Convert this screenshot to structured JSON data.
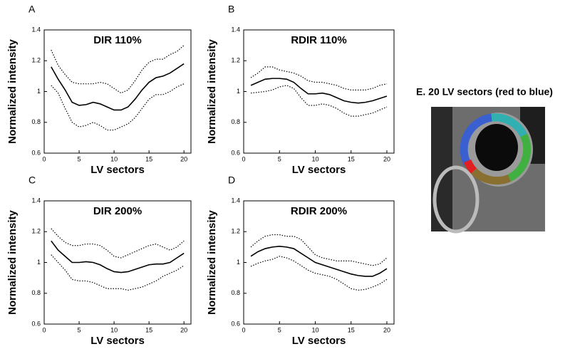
{
  "chart_data": [
    {
      "type": "line",
      "panel": "A",
      "title": "DIR 110%",
      "xlabel": "LV sectors",
      "ylabel": "Normalized intensity",
      "x": [
        1,
        2,
        3,
        4,
        5,
        6,
        7,
        8,
        9,
        10,
        11,
        12,
        13,
        14,
        15,
        16,
        17,
        18,
        19,
        20
      ],
      "xlim": [
        0,
        21
      ],
      "xticks": [
        0,
        5,
        10,
        15,
        20
      ],
      "ylim": [
        0.6,
        1.4
      ],
      "yticks": [
        0.6,
        0.8,
        1,
        1.2,
        1.4
      ],
      "series": [
        {
          "color": "#000000",
          "style": "solid",
          "values": [
            1.16,
            1.08,
            1.01,
            0.93,
            0.91,
            0.915,
            0.93,
            0.92,
            0.9,
            0.88,
            0.88,
            0.9,
            0.95,
            1.01,
            1.06,
            1.09,
            1.1,
            1.12,
            1.15,
            1.18
          ]
        },
        {
          "color": "#000000",
          "style": "dotted",
          "values": [
            1.27,
            1.17,
            1.11,
            1.06,
            1.05,
            1.05,
            1.05,
            1.06,
            1.05,
            1.02,
            0.99,
            1.01,
            1.07,
            1.14,
            1.19,
            1.21,
            1.21,
            1.24,
            1.26,
            1.3
          ]
        },
        {
          "color": "#000000",
          "style": "dotted",
          "values": [
            1.04,
            0.99,
            0.89,
            0.8,
            0.77,
            0.78,
            0.8,
            0.78,
            0.75,
            0.75,
            0.77,
            0.79,
            0.83,
            0.89,
            0.95,
            0.98,
            0.98,
            1.0,
            1.03,
            1.05
          ]
        }
      ]
    },
    {
      "type": "line",
      "panel": "B",
      "title": "RDIR 110%",
      "xlabel": "LV sectors",
      "ylabel": "Normalized intensity",
      "x": [
        1,
        2,
        3,
        4,
        5,
        6,
        7,
        8,
        9,
        10,
        11,
        12,
        13,
        14,
        15,
        16,
        17,
        18,
        19,
        20
      ],
      "xlim": [
        0,
        21
      ],
      "xticks": [
        0,
        5,
        10,
        15,
        20
      ],
      "ylim": [
        0.6,
        1.4
      ],
      "yticks": [
        0.6,
        0.8,
        1,
        1.2,
        1.4
      ],
      "series": [
        {
          "color": "#000000",
          "style": "solid",
          "values": [
            1.04,
            1.06,
            1.08,
            1.085,
            1.085,
            1.08,
            1.06,
            1.02,
            0.985,
            0.985,
            0.99,
            0.98,
            0.96,
            0.94,
            0.93,
            0.925,
            0.93,
            0.94,
            0.955,
            0.97
          ]
        },
        {
          "color": "#000000",
          "style": "dotted",
          "values": [
            1.09,
            1.12,
            1.16,
            1.16,
            1.14,
            1.13,
            1.12,
            1.1,
            1.07,
            1.06,
            1.06,
            1.05,
            1.04,
            1.02,
            1.01,
            1.01,
            1.01,
            1.02,
            1.04,
            1.05
          ]
        },
        {
          "color": "#000000",
          "style": "dotted",
          "values": [
            0.99,
            0.995,
            1.0,
            1.01,
            1.03,
            1.04,
            1.02,
            0.96,
            0.91,
            0.91,
            0.92,
            0.91,
            0.89,
            0.86,
            0.84,
            0.84,
            0.85,
            0.86,
            0.88,
            0.9
          ]
        }
      ]
    },
    {
      "type": "line",
      "panel": "C",
      "title": "DIR 200%",
      "xlabel": "LV sectors",
      "ylabel": "Normalized intensity",
      "x": [
        1,
        2,
        3,
        4,
        5,
        6,
        7,
        8,
        9,
        10,
        11,
        12,
        13,
        14,
        15,
        16,
        17,
        18,
        19,
        20
      ],
      "xlim": [
        0,
        21
      ],
      "xticks": [
        0,
        5,
        10,
        15,
        20
      ],
      "ylim": [
        0.6,
        1.4
      ],
      "yticks": [
        0.6,
        0.8,
        1,
        1.2,
        1.4
      ],
      "series": [
        {
          "color": "#000000",
          "style": "solid",
          "values": [
            1.14,
            1.08,
            1.04,
            1.0,
            1.0,
            1.005,
            1.0,
            0.985,
            0.96,
            0.94,
            0.935,
            0.94,
            0.955,
            0.97,
            0.985,
            0.99,
            0.99,
            1.0,
            1.03,
            1.06
          ]
        },
        {
          "color": "#000000",
          "style": "dotted",
          "values": [
            1.22,
            1.17,
            1.13,
            1.11,
            1.11,
            1.12,
            1.12,
            1.11,
            1.08,
            1.04,
            1.03,
            1.05,
            1.07,
            1.09,
            1.11,
            1.12,
            1.1,
            1.08,
            1.1,
            1.14
          ]
        },
        {
          "color": "#000000",
          "style": "dotted",
          "values": [
            1.05,
            1.0,
            0.95,
            0.89,
            0.88,
            0.88,
            0.87,
            0.85,
            0.83,
            0.83,
            0.83,
            0.82,
            0.83,
            0.84,
            0.86,
            0.88,
            0.91,
            0.93,
            0.95,
            0.98
          ]
        }
      ]
    },
    {
      "type": "line",
      "panel": "D",
      "title": "RDIR 200%",
      "xlabel": "LV sectors",
      "ylabel": "Normalized intensity",
      "x": [
        1,
        2,
        3,
        4,
        5,
        6,
        7,
        8,
        9,
        10,
        11,
        12,
        13,
        14,
        15,
        16,
        17,
        18,
        19,
        20
      ],
      "xlim": [
        0,
        21
      ],
      "xticks": [
        0,
        5,
        10,
        15,
        20
      ],
      "ylim": [
        0.6,
        1.4
      ],
      "yticks": [
        0.6,
        0.8,
        1,
        1.2,
        1.4
      ],
      "series": [
        {
          "color": "#000000",
          "style": "solid",
          "values": [
            1.04,
            1.07,
            1.09,
            1.1,
            1.105,
            1.1,
            1.09,
            1.06,
            1.03,
            1.0,
            0.985,
            0.97,
            0.955,
            0.94,
            0.925,
            0.915,
            0.91,
            0.91,
            0.93,
            0.96
          ]
        },
        {
          "color": "#000000",
          "style": "dotted",
          "values": [
            1.1,
            1.14,
            1.17,
            1.18,
            1.18,
            1.17,
            1.17,
            1.15,
            1.1,
            1.05,
            1.03,
            1.02,
            1.01,
            1.01,
            1.01,
            1.0,
            0.99,
            0.98,
            0.99,
            1.03
          ]
        },
        {
          "color": "#000000",
          "style": "dotted",
          "values": [
            0.975,
            0.995,
            1.01,
            1.02,
            1.04,
            1.03,
            1.01,
            0.98,
            0.95,
            0.93,
            0.92,
            0.91,
            0.89,
            0.86,
            0.83,
            0.82,
            0.825,
            0.84,
            0.86,
            0.89
          ]
        }
      ]
    }
  ],
  "image_panel": {
    "label": "E. 20 LV sectors (red to blue)"
  }
}
